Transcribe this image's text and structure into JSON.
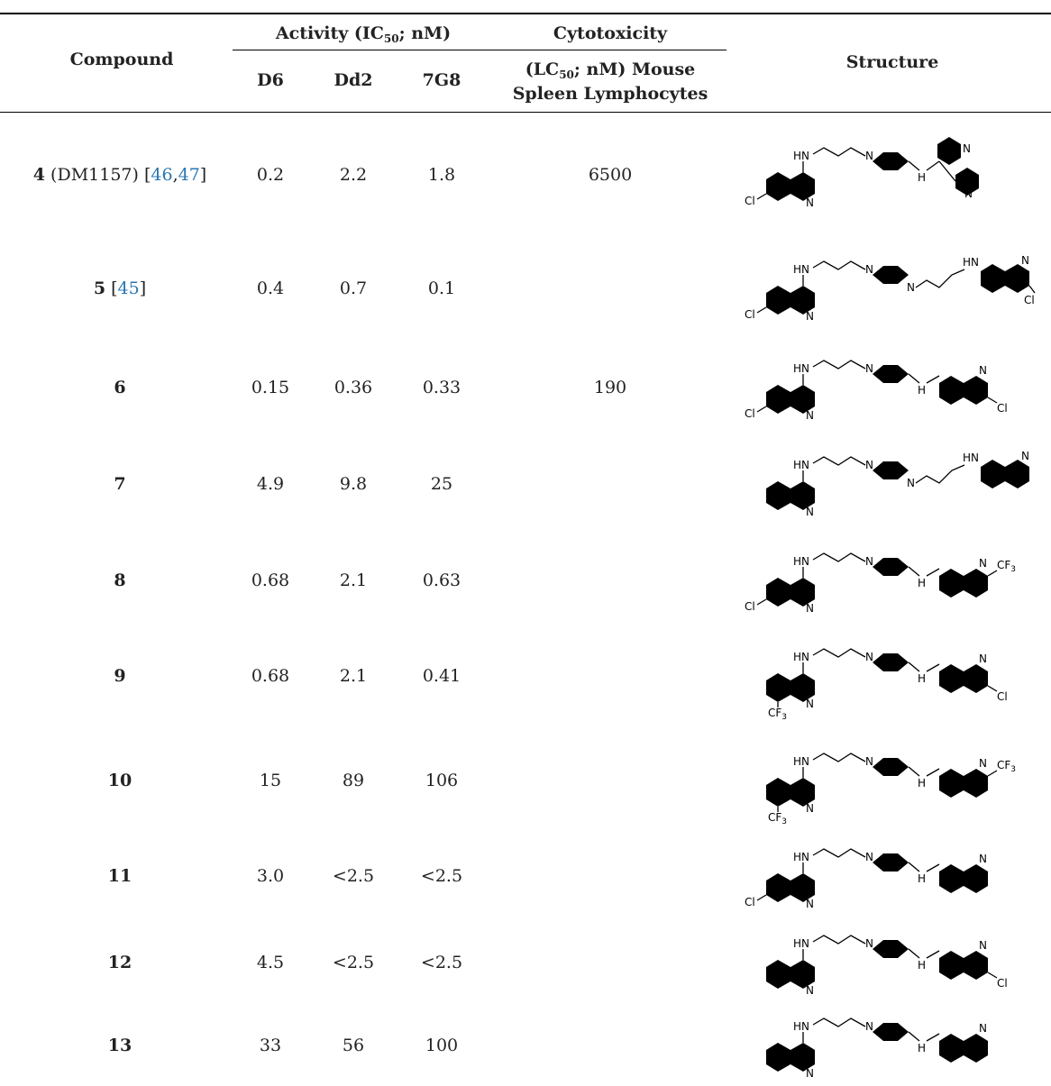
{
  "table": {
    "headers": {
      "compound": "Compound",
      "activity": "Activity (IC",
      "activity_sub": "50",
      "activity_tail": "; nM)",
      "cytotoxicity": "Cytotoxicity",
      "cyto_line1_pre": "(LC",
      "cyto_line1_sub": "50",
      "cyto_line1_tail": "; nM) Mouse",
      "cyto_line2": "Spleen Lymphocytes",
      "structure": "Structure",
      "strains": [
        "D6",
        "Dd2",
        "7G8"
      ]
    },
    "rows": [
      {
        "id": "4",
        "name": " (DM1157) [",
        "refs": [
          "46",
          "47"
        ],
        "close": "]",
        "d6": "0.2",
        "dd2": "2.2",
        "g8": "1.8",
        "lc50": "6500"
      },
      {
        "id": "5",
        "name": " [",
        "refs": [
          "45"
        ],
        "close": "]",
        "d6": "0.4",
        "dd2": "0.7",
        "g8": "0.1",
        "lc50": ""
      },
      {
        "id": "6",
        "name": "",
        "refs": [],
        "close": "",
        "d6": "0.15",
        "dd2": "0.36",
        "g8": "0.33",
        "lc50": "190"
      },
      {
        "id": "7",
        "name": "",
        "refs": [],
        "close": "",
        "d6": "4.9",
        "dd2": "9.8",
        "g8": "25",
        "lc50": ""
      },
      {
        "id": "8",
        "name": "",
        "refs": [],
        "close": "",
        "d6": "0.68",
        "dd2": "2.1",
        "g8": "0.63",
        "lc50": ""
      },
      {
        "id": "9",
        "name": "",
        "refs": [],
        "close": "",
        "d6": "0.68",
        "dd2": "2.1",
        "g8": "0.41",
        "lc50": ""
      },
      {
        "id": "10",
        "name": "",
        "refs": [],
        "close": "",
        "d6": "15",
        "dd2": "89",
        "g8": "106",
        "lc50": ""
      },
      {
        "id": "11",
        "name": "",
        "refs": [],
        "close": "",
        "d6": "3.0",
        "dd2": "<2.5",
        "g8": "<2.5",
        "lc50": ""
      },
      {
        "id": "12",
        "name": "",
        "refs": [],
        "close": "",
        "d6": "4.5",
        "dd2": "<2.5",
        "g8": "<2.5",
        "lc50": ""
      },
      {
        "id": "13",
        "name": "",
        "refs": [],
        "close": "",
        "d6": "33",
        "dd2": "56",
        "g8": "100",
        "lc50": ""
      }
    ]
  },
  "structure_labels": {
    "hn": "HN",
    "n": "N",
    "nh_h": "H",
    "cl": "Cl",
    "cf3": "CF",
    "cf3_sub": "3"
  }
}
